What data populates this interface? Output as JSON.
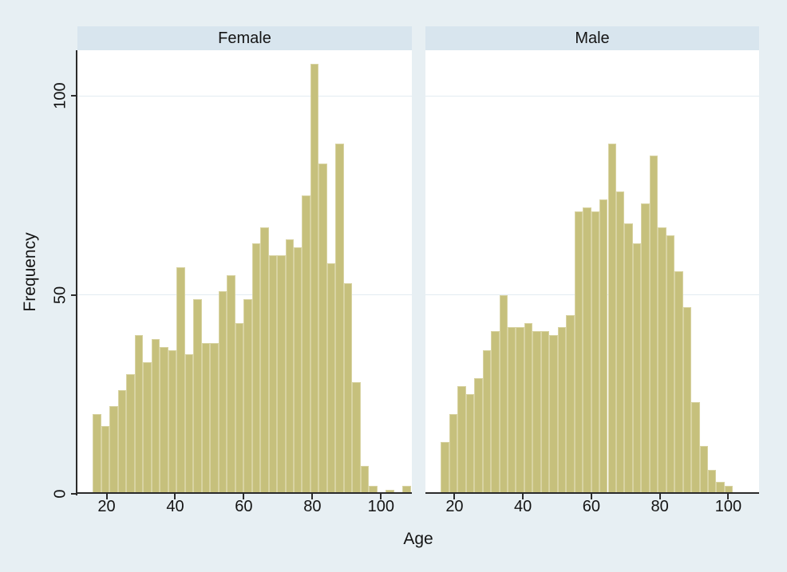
{
  "figure": {
    "colors": {
      "figure-bg": "#e7eff3",
      "header-fill": "#d8e5ee",
      "plot-fill": "#ffffff",
      "grid-color": "#e3ecf2",
      "axis-color": "#2b2b2b",
      "text-color": "#141414",
      "bar-fill": "#c6c07c",
      "bar-outline": "#d8d3a2"
    }
  },
  "chart_data": {
    "type": "bar",
    "kind": "faceted-histogram",
    "title": "",
    "x_title": "Age",
    "y_title": "Frequency",
    "x_ticks": [
      20,
      40,
      60,
      80,
      100
    ],
    "y_ticks": [
      0,
      50,
      100
    ],
    "x_domain": [
      11.5,
      109
    ],
    "y_domain": [
      0,
      111.5
    ],
    "grid": "horizontal-only",
    "bin_start": 16,
    "bin_width": 2.44,
    "panels": [
      {
        "label": "Female",
        "frequencies": [
          20,
          17,
          22,
          26,
          30,
          40,
          33,
          39,
          37,
          36,
          57,
          35,
          49,
          38,
          38,
          51,
          55,
          43,
          49,
          63,
          67,
          60,
          60,
          64,
          62,
          75,
          108,
          83,
          58,
          88,
          53,
          28,
          7,
          2,
          0,
          1,
          0,
          2
        ]
      },
      {
        "label": "Male",
        "frequencies": [
          13,
          20,
          27,
          25,
          29,
          36,
          41,
          50,
          42,
          42,
          43,
          41,
          41,
          40,
          42,
          45,
          71,
          72,
          71,
          74,
          88,
          76,
          68,
          63,
          73,
          85,
          67,
          65,
          56,
          47,
          23,
          12,
          6,
          3,
          2
        ]
      }
    ]
  }
}
